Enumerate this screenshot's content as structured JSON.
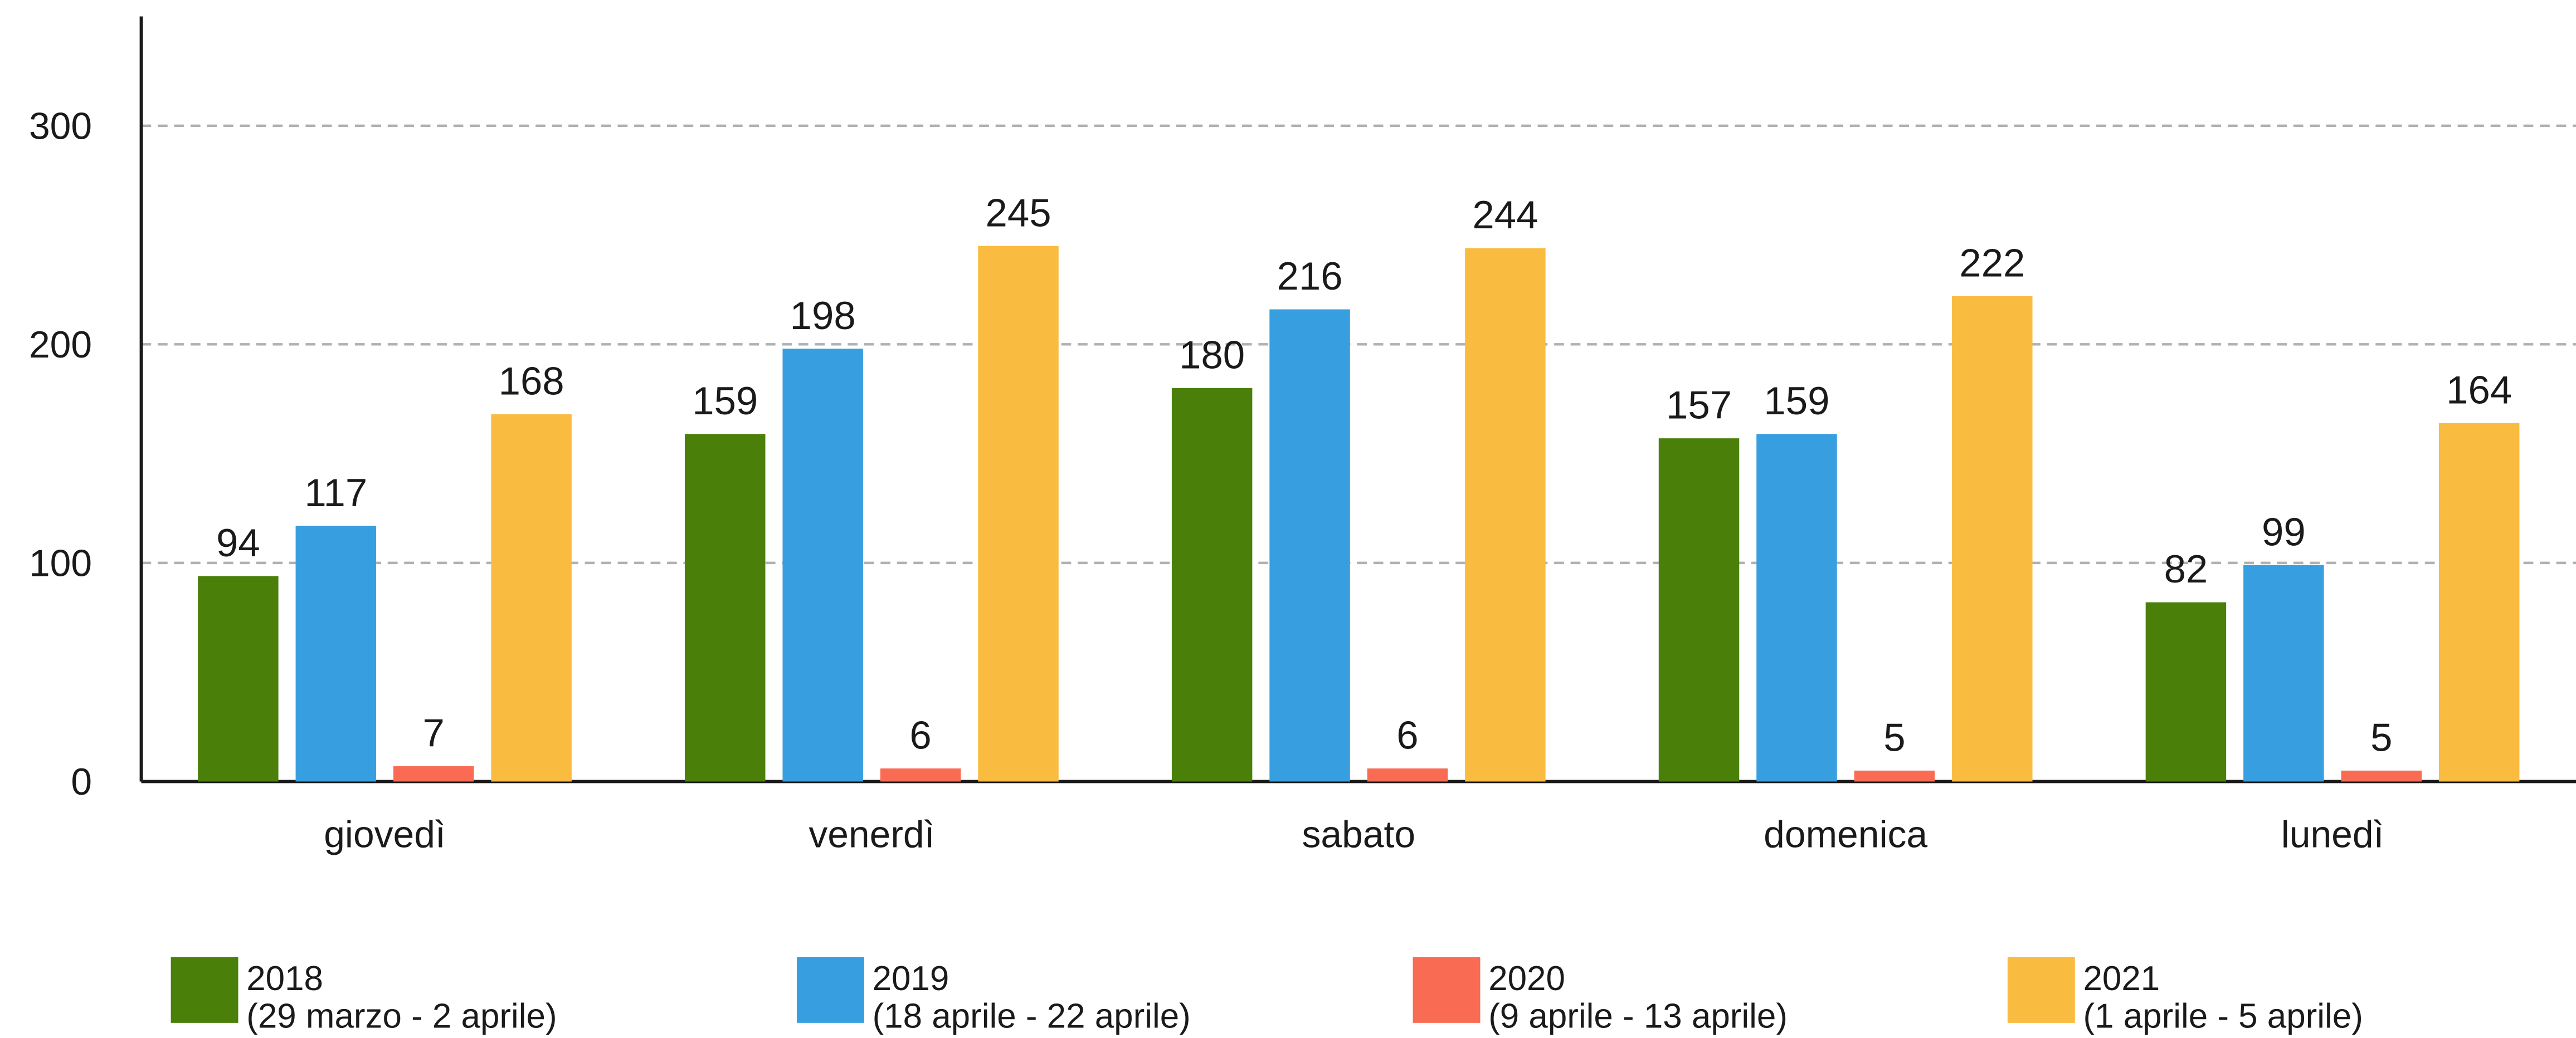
{
  "chart_data": {
    "type": "bar",
    "categories": [
      "giovedì",
      "venerdì",
      "sabato",
      "domenica",
      "lunedì"
    ],
    "series": [
      {
        "name": "2018",
        "period": "(29 marzo - 2 aprile)",
        "color": "#4a7f0a",
        "values": [
          94,
          159,
          180,
          157,
          82
        ]
      },
      {
        "name": "2019",
        "period": "(18 aprile - 22 aprile)",
        "color": "#379fe0",
        "values": [
          117,
          198,
          216,
          159,
          99
        ]
      },
      {
        "name": "2020",
        "period": "(9 aprile - 13 aprile)",
        "color": "#f96b52",
        "values": [
          7,
          6,
          6,
          5,
          5
        ]
      },
      {
        "name": "2021",
        "period": "(1 aprile - 5 aprile)",
        "color": "#f9bb40",
        "values": [
          168,
          245,
          244,
          222,
          164
        ]
      }
    ],
    "ylim": [
      0,
      350
    ],
    "yticks": [
      0,
      100,
      200,
      300
    ],
    "grid": true,
    "legend": "bottom"
  }
}
